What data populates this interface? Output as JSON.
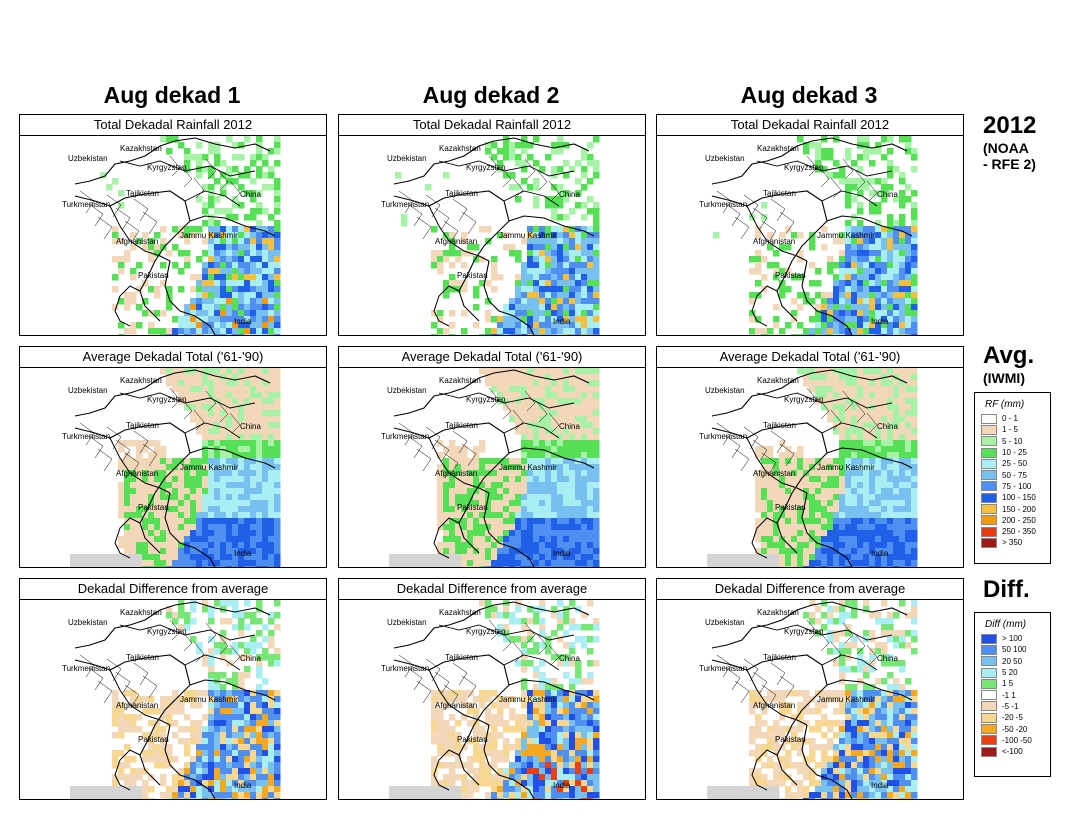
{
  "columns": [
    "Aug dekad 1",
    "Aug dekad 2",
    "Aug dekad 3"
  ],
  "rows": [
    {
      "panel_title": "Total Dekadal Rainfall 2012",
      "label": "2012",
      "sublabel": "(NOAA\n- RFE 2)",
      "mode": "rf"
    },
    {
      "panel_title": "Average Dekadal Total ('61-'90)",
      "label": "Avg.",
      "sublabel": "(IWMI)",
      "mode": "avg"
    },
    {
      "panel_title": "Dekadal Difference from average",
      "label": "Diff.",
      "sublabel": "",
      "mode": "diff"
    }
  ],
  "map_labels": [
    "Kazakhstan",
    "Uzbekistan",
    "Kyrgyzstan",
    "Tajikistan",
    "China",
    "Turkmenistan",
    "Afghanistan",
    "Jammu Kashmir",
    "Pakistan",
    "India"
  ],
  "rf_legend": {
    "title": "RF (mm)",
    "items": [
      {
        "label": "0 - 1",
        "color": "#fefef6"
      },
      {
        "label": "1 - 5",
        "color": "#f2d8b8"
      },
      {
        "label": "5 - 10",
        "color": "#a6f2a6"
      },
      {
        "label": "10 - 25",
        "color": "#55e055"
      },
      {
        "label": "25 - 50",
        "color": "#a8eef2"
      },
      {
        "label": "50 - 75",
        "color": "#78c0f0"
      },
      {
        "label": "75 - 100",
        "color": "#4f8ff2"
      },
      {
        "label": "100 - 150",
        "color": "#2060e8"
      },
      {
        "label": "150 - 200",
        "color": "#f5c040"
      },
      {
        "label": "200 - 250",
        "color": "#f59a10"
      },
      {
        "label": "250 - 350",
        "color": "#e83a10"
      },
      {
        "label": "> 350",
        "color": "#a01818"
      }
    ]
  },
  "diff_legend": {
    "title": "Diff (mm)",
    "items": [
      {
        "label": "> 100",
        "color": "#2050e8"
      },
      {
        "label": "50 100",
        "color": "#4f8ff2"
      },
      {
        "label": "20 50",
        "color": "#78c0f0"
      },
      {
        "label": "5 20",
        "color": "#a8eef2"
      },
      {
        "label": "1 5",
        "color": "#77e677"
      },
      {
        "label": "-1 1",
        "color": "#ffffff"
      },
      {
        "label": "-5 -1",
        "color": "#f2d8b8"
      },
      {
        "label": "-20 -5",
        "color": "#f8d890"
      },
      {
        "label": "-50 -20",
        "color": "#f5a820"
      },
      {
        "label": "-100 -50",
        "color": "#e84010"
      },
      {
        "label": "<-100",
        "color": "#a01818"
      }
    ]
  }
}
